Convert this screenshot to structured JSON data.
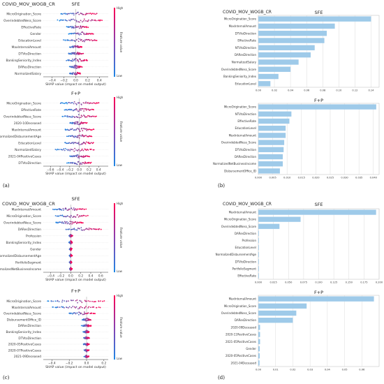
{
  "labels": {
    "a": "(a)",
    "b": "(b)",
    "c": "(c)",
    "d": "(d)"
  },
  "colors": {
    "low": "#1e88e5",
    "high": "#ff0052",
    "bar": "#9ecae9",
    "grid": "#cccccc"
  },
  "chart_data": [
    {
      "panel": "a",
      "type": "scatter",
      "title": "COVID_MOV_WOGB_CR",
      "subplots": [
        {
          "title": "SFE",
          "xlabel": "SHAP value (impact on model output)",
          "colorbar": {
            "title": "Feature value",
            "high": "High",
            "low": "Low"
          },
          "xlim": [
            -0.55,
            0.55
          ],
          "xticks": [
            -0.4,
            -0.2,
            0.0,
            0.2,
            0.4
          ],
          "xtick_labels": [
            "−0.4",
            "−0.2",
            "0.0",
            "0.2",
            "0.4"
          ],
          "features": [
            {
              "name": "MicroOrigination_Score",
              "lo": -0.25,
              "hi": 0.35
            },
            {
              "name": "OverindebtedNess_Score",
              "lo": -0.3,
              "hi": 0.45
            },
            {
              "name": "EffectiveRate",
              "lo": -0.15,
              "hi": 0.2
            },
            {
              "name": "Gender",
              "lo": -0.12,
              "hi": 0.3
            },
            {
              "name": "EducationLevel",
              "lo": -0.2,
              "hi": 0.35
            },
            {
              "name": "MaxInternalAmount",
              "lo": -0.1,
              "hi": 0.1
            },
            {
              "name": "DTVtoDirection",
              "lo": -0.12,
              "hi": 0.12
            },
            {
              "name": "BankingSeniority_Index",
              "lo": -0.15,
              "hi": 0.2
            },
            {
              "name": "DAResDirection",
              "lo": -0.1,
              "hi": 0.1
            },
            {
              "name": "NormalizedSalary",
              "lo": -0.1,
              "hi": 0.08
            }
          ]
        },
        {
          "title": "F+P",
          "xlabel": "SHAP value (impact on model output)",
          "colorbar": {
            "title": "Feature value",
            "high": "High",
            "low": "Low"
          },
          "xlim": [
            -0.75,
            0.6
          ],
          "xticks": [
            -0.6,
            -0.4,
            -0.2,
            0.0,
            0.2,
            0.4
          ],
          "xtick_labels": [
            "−0.6",
            "−0.4",
            "−0.2",
            "0.0",
            "0.2",
            "0.4"
          ],
          "features": [
            {
              "name": "MicroOrigination_Score",
              "lo": -0.4,
              "hi": 0.4
            },
            {
              "name": "EffectiveRate",
              "lo": -0.3,
              "hi": 0.3
            },
            {
              "name": "OverindebtedNess_Score",
              "lo": -0.35,
              "hi": 0.35
            },
            {
              "name": "2020-10Deceased",
              "lo": -0.2,
              "hi": 0.15
            },
            {
              "name": "MaxInternalAmount",
              "lo": -0.3,
              "hi": 0.3
            },
            {
              "name": "NormalizedDisbursementAge",
              "lo": -0.25,
              "hi": 0.25
            },
            {
              "name": "EducationLevel",
              "lo": -0.3,
              "hi": 0.3
            },
            {
              "name": "NormalizedSalary",
              "lo": -0.5,
              "hi": 0.3
            },
            {
              "name": "2021-04PositiveCases",
              "lo": -0.2,
              "hi": 0.2
            },
            {
              "name": "DTVtoDirection",
              "lo": -0.25,
              "hi": 0.25
            }
          ]
        }
      ]
    },
    {
      "panel": "b",
      "type": "bar",
      "title": "COVID_MOV_WOGB_CR",
      "subplots": [
        {
          "title": "SFE",
          "xlim": [
            0,
            0.15
          ],
          "xticks": [
            0.0,
            0.02,
            0.04,
            0.06,
            0.08,
            0.1,
            0.12,
            0.14
          ],
          "xtick_labels": [
            "0.00",
            "0.02",
            "0.04",
            "0.06",
            "0.08",
            "0.10",
            "0.12",
            "0.14"
          ],
          "categories": [
            "MicroOrigination_Score",
            "MaxInternalAmount",
            "DTVtoDirection",
            "EffectiveRate",
            "NTVtoDirection",
            "DAResDirection",
            "NormalizedSalary",
            "OverindebtedNess_Score",
            "BankingSeniority_Index",
            "EducationLevel"
          ],
          "values": [
            0.14,
            0.095,
            0.085,
            0.082,
            0.07,
            0.065,
            0.05,
            0.04,
            0.025,
            0.015
          ]
        },
        {
          "title": "F+P",
          "xlim": [
            0,
            0.042
          ],
          "xticks": [
            0.0,
            0.005,
            0.01,
            0.015,
            0.02,
            0.025,
            0.03,
            0.035,
            0.04
          ],
          "xtick_labels": [
            "0.000",
            "0.005",
            "0.010",
            "0.015",
            "0.020",
            "0.025",
            "0.030",
            "0.035",
            "0.040"
          ],
          "categories": [
            "MicroOrigination_Score",
            "NTVtoDirection",
            "EffectiveRate",
            "EducationLevel",
            "MaxInternalAmount",
            "OverindebtedNess_Score",
            "DTVtoDirection",
            "DAResDirection",
            "NormalizedNetBusinessIncome",
            "DisbursementOffice_ID"
          ],
          "values": [
            0.041,
            0.0115,
            0.0108,
            0.0095,
            0.0095,
            0.009,
            0.0088,
            0.0085,
            0.0085,
            0.0075
          ]
        }
      ]
    },
    {
      "panel": "c",
      "type": "scatter",
      "title": "COVID_MOV_WOGB_CR",
      "subplots": [
        {
          "title": "SFE",
          "xlabel": "SHAP value (impact on model output)",
          "colorbar": {
            "title": "Feature value",
            "high": "High",
            "low": "Low"
          },
          "xlim": [
            -0.55,
            0.75
          ],
          "xticks": [
            -0.4,
            -0.2,
            0.0,
            0.2,
            0.4,
            0.6
          ],
          "xtick_labels": [
            "−0.4",
            "−0.2",
            "0.0",
            "0.2",
            "0.4",
            "0.6"
          ],
          "features": [
            {
              "name": "MaxInternalAmount",
              "lo": -0.35,
              "hi": 0.3
            },
            {
              "name": "MicroOrigination_Score",
              "lo": -0.3,
              "hi": 0.35
            },
            {
              "name": "OverindebtedNess_Score",
              "lo": -0.3,
              "hi": 0.25
            },
            {
              "name": "DAResDirection",
              "lo": -0.1,
              "hi": 0.6
            },
            {
              "name": "Profession",
              "lo": -0.03,
              "hi": 0.03
            },
            {
              "name": "BankingSeniority_Index",
              "lo": -0.03,
              "hi": 0.03
            },
            {
              "name": "Gender",
              "lo": -0.02,
              "hi": 0.02
            },
            {
              "name": "NormalizedDisbursementAge",
              "lo": -0.02,
              "hi": 0.02
            },
            {
              "name": "PortfolioSegment",
              "lo": -0.02,
              "hi": 0.02
            },
            {
              "name": "NormalizedNetBusinessIncome",
              "lo": -0.02,
              "hi": 0.02
            }
          ]
        },
        {
          "title": "F+P",
          "xlabel": "SHAP value (impact on model output)",
          "colorbar": {
            "title": "Feature value",
            "high": "High",
            "low": "Low"
          },
          "xlim": [
            -0.5,
            0.25
          ],
          "xticks": [
            -0.4,
            -0.2,
            0.0,
            0.2
          ],
          "xtick_labels": [
            "−0.4",
            "−0.2",
            "0.0",
            "0.2"
          ],
          "features": [
            {
              "name": "MicroOrigination_Score",
              "lo": -0.45,
              "hi": 0.2
            },
            {
              "name": "MaxInternalAmount",
              "lo": -0.4,
              "hi": 0.15
            },
            {
              "name": "OverindebtedNess_Score",
              "lo": -0.2,
              "hi": 0.1
            },
            {
              "name": "DisbursementOffice_ID",
              "lo": -0.05,
              "hi": 0.05
            },
            {
              "name": "DAResDirection",
              "lo": -0.05,
              "hi": 0.05
            },
            {
              "name": "BankingSeniority_Index",
              "lo": -0.03,
              "hi": 0.03
            },
            {
              "name": "DTVtoDirection",
              "lo": -0.03,
              "hi": 0.03
            },
            {
              "name": "2020-05PositiveCases",
              "lo": -0.03,
              "hi": 0.03
            },
            {
              "name": "2020-07PositiveCases",
              "lo": -0.02,
              "hi": 0.02
            },
            {
              "name": "2021-09Deceased",
              "lo": -0.02,
              "hi": 0.02
            }
          ]
        }
      ]
    },
    {
      "panel": "d",
      "type": "bar",
      "title": "COVID_MOV_WOGB_CR",
      "subplots": [
        {
          "title": "SFE",
          "xlim": [
            0,
            0.2
          ],
          "xticks": [
            0.0,
            0.025,
            0.05,
            0.075,
            0.1,
            0.125,
            0.15,
            0.175,
            0.2
          ],
          "xtick_labels": [
            "0.000",
            "0.025",
            "0.050",
            "0.075",
            "0.100",
            "0.125",
            "0.150",
            "0.175",
            "0.200"
          ],
          "categories": [
            "MaxInternalAmount",
            "MicroOrigination_Score",
            "OverindebtedNess_Score",
            "DAResDirection",
            "Profession",
            "EducationLevel",
            "NormalizedDisbursementAge",
            "DTVtoDirection",
            "PortfolioSegment",
            "EffectiveRate"
          ],
          "values": [
            0.195,
            0.07,
            0.035,
            0.0008,
            0.0005,
            0.0004,
            0.0004,
            0.0003,
            0.0003,
            0.0002
          ]
        },
        {
          "title": "F+P",
          "xlim": [
            0,
            0.07
          ],
          "xticks": [
            0.0,
            0.01,
            0.02,
            0.03,
            0.04,
            0.05,
            0.06
          ],
          "xtick_labels": [
            "0.00",
            "0.01",
            "0.02",
            "0.03",
            "0.04",
            "0.05",
            "0.06"
          ],
          "categories": [
            "MaxInternalAmount",
            "MicroOrigination_Score",
            "OverindebtedNess_Score",
            "DAResDirection",
            "2020-09Deceased",
            "2020-11PositiveCases",
            "2021-05PositiveCases",
            "Gender",
            "2020-05PositiveCases",
            "2021-04Deceased"
          ],
          "values": [
            0.067,
            0.028,
            0.022,
            0.02,
            0.001,
            0.001,
            0.001,
            0.0008,
            0.0008,
            0.0007
          ]
        }
      ]
    }
  ]
}
